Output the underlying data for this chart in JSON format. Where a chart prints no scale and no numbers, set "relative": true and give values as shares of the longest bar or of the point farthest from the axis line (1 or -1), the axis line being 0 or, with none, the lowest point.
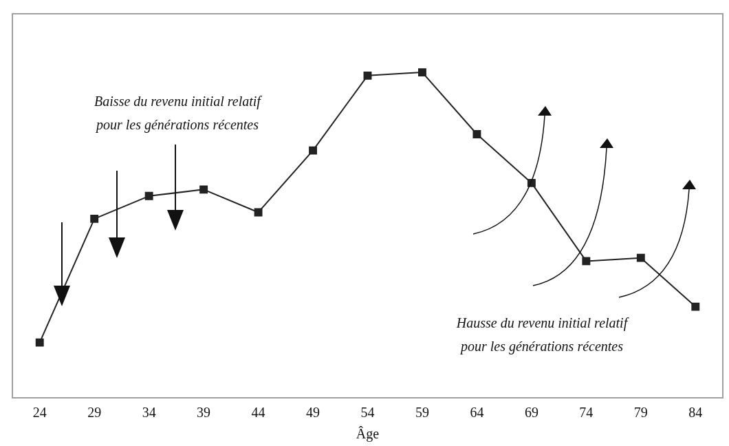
{
  "chart_data": {
    "type": "line",
    "xlabel": "Âge",
    "relative": true,
    "categories": [
      "24",
      "29",
      "34",
      "39",
      "44",
      "49",
      "54",
      "59",
      "64",
      "69",
      "74",
      "79",
      "84"
    ],
    "values": [
      0.17,
      0.55,
      0.62,
      0.64,
      0.57,
      0.76,
      0.99,
      1,
      0.81,
      0.66,
      0.42,
      0.43,
      0.28
    ],
    "color": "#222222",
    "marker": "square",
    "line_style": "solid",
    "grid": false,
    "legend": false,
    "annotations": [
      "Baisse du revenu initial relatif\npour les générations récentes",
      "Hausse du revenu initial relatif\npour les générations récentes"
    ]
  }
}
